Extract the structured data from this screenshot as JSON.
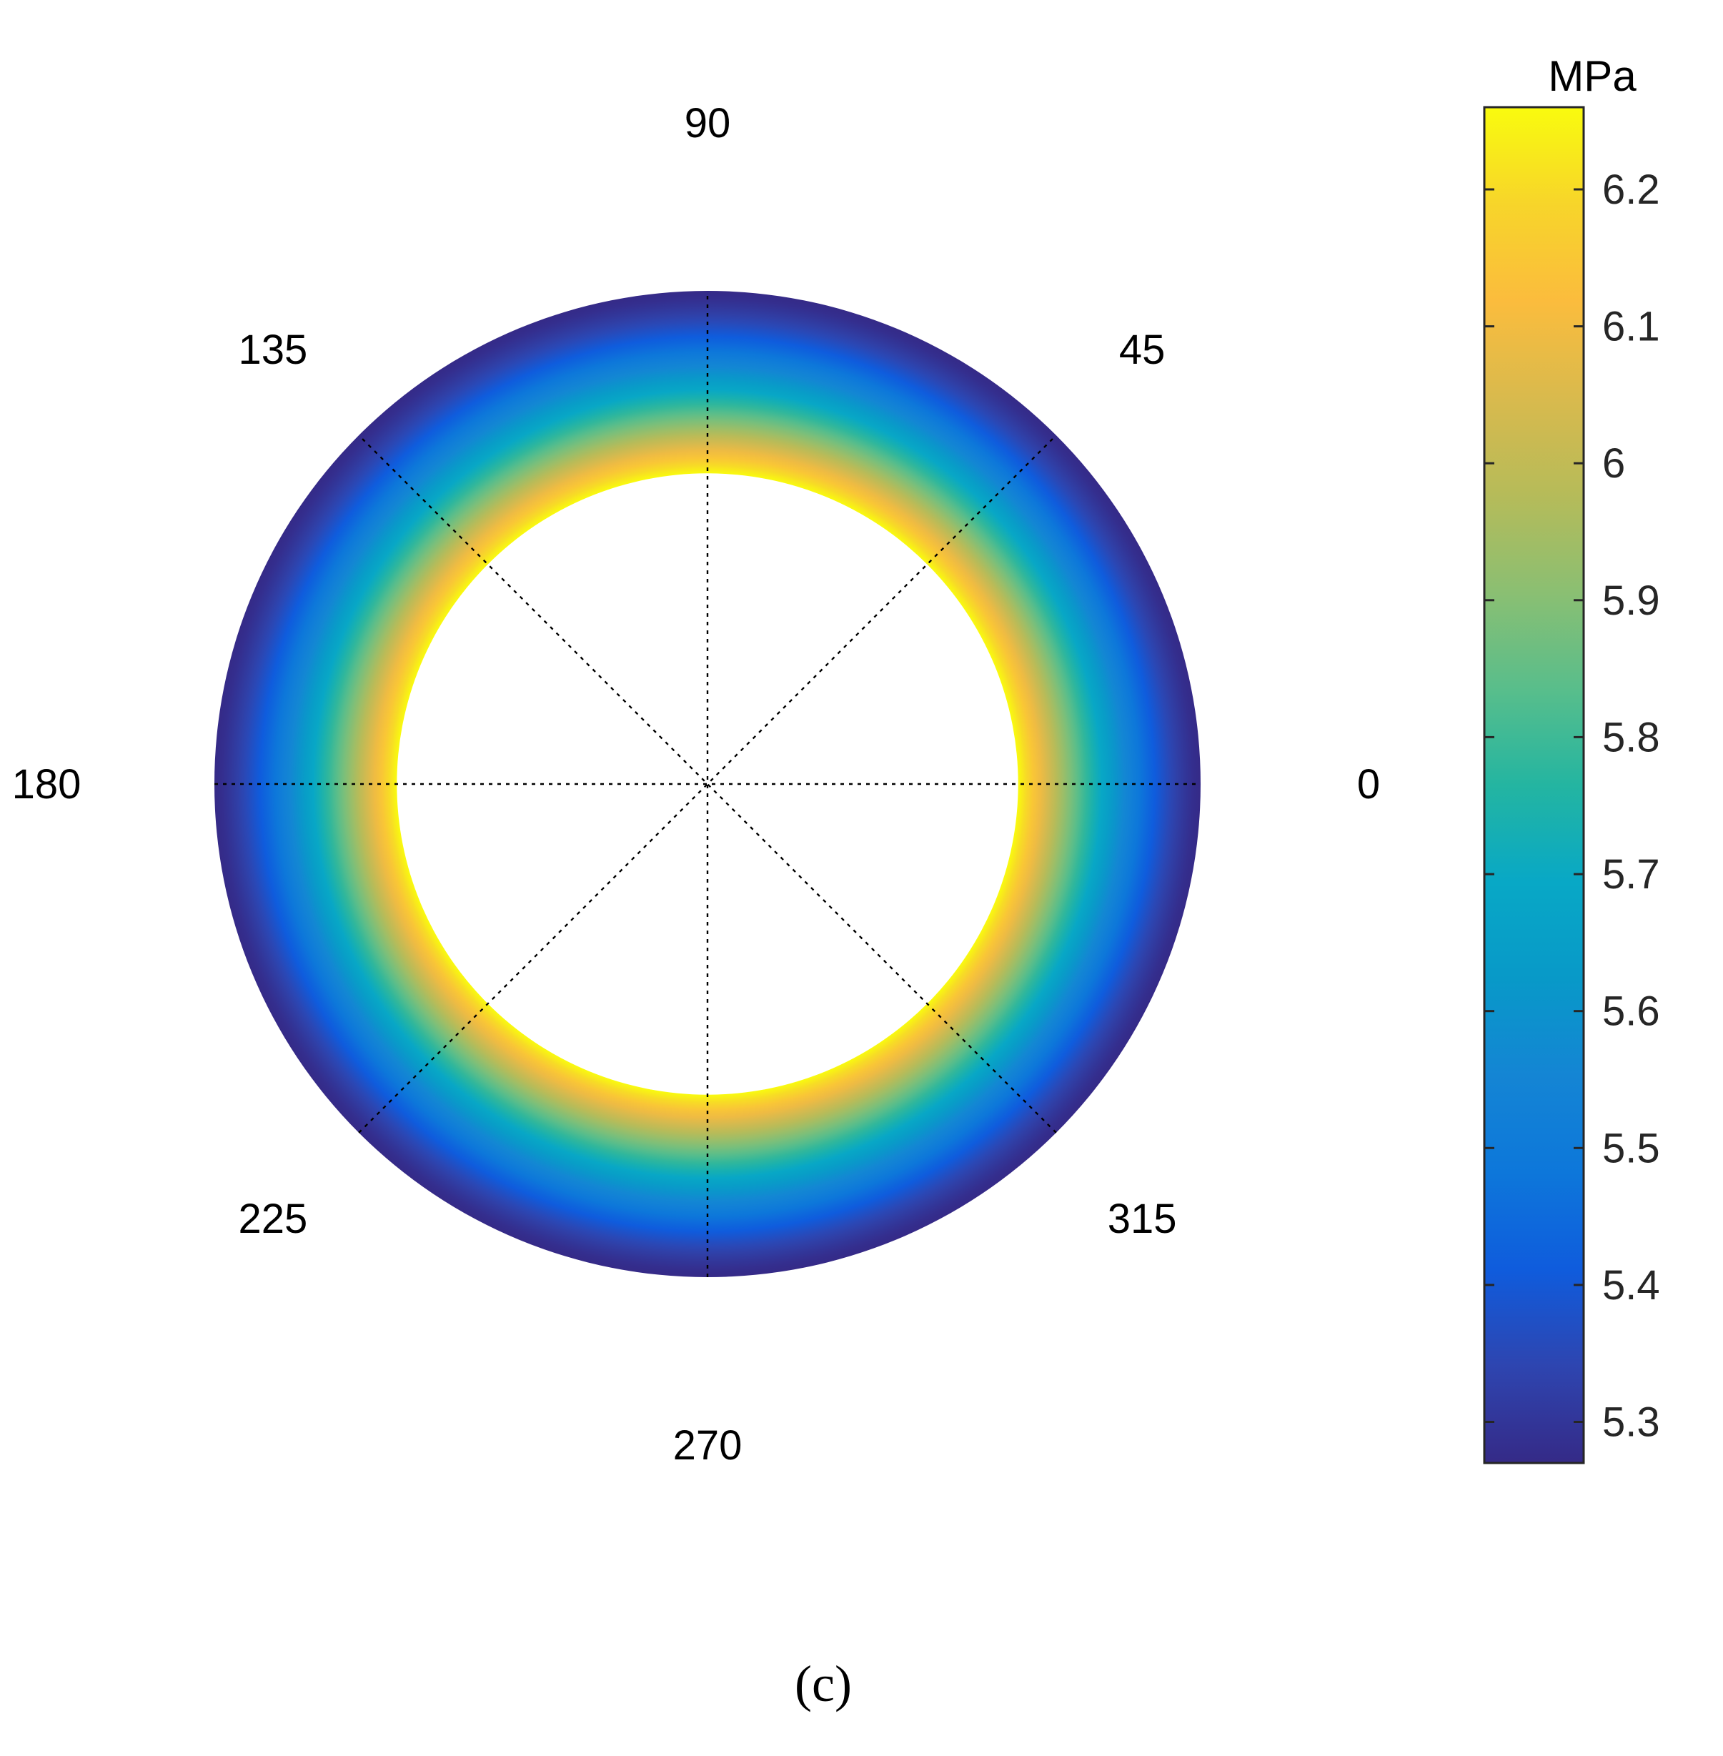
{
  "chart_data": {
    "type": "heatmap",
    "subtype": "polar-annulus",
    "title": "",
    "angle_unit_labels": [
      "0",
      "45",
      "90",
      "135",
      "180",
      "225",
      "270",
      "315"
    ],
    "angular_ticks_deg": [
      0,
      45,
      90,
      135,
      180,
      225,
      270,
      315
    ],
    "inner_radius_fraction": 0.63,
    "field": "radial stress distribution, maximum at inner surface, decreasing outward, uniform in angle",
    "value_inner": 6.26,
    "value_outer": 5.27,
    "grid": true,
    "colorbar": {
      "unit": "MPa",
      "range": [
        5.27,
        6.26
      ],
      "ticks": [
        "5.3",
        "5.4",
        "5.5",
        "5.6",
        "5.7",
        "5.8",
        "5.9",
        "6",
        "6.1",
        "6.2"
      ],
      "colormap": "parula",
      "colormap_stops": [
        "#352a87",
        "#2e45b0",
        "#0f5cdd",
        "#0d77da",
        "#1485d4",
        "#0899c8",
        "#08a8c6",
        "#24b5a1",
        "#59be8b",
        "#8bbf72",
        "#b6bb59",
        "#d9ba4d",
        "#fbbc3d",
        "#f7d52a",
        "#f9fb0e"
      ]
    },
    "panel_label": "(c)"
  }
}
